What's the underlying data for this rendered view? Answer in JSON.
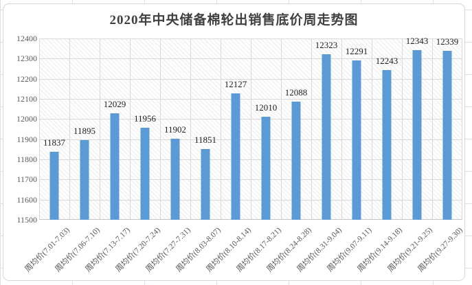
{
  "chart_data": {
    "type": "bar",
    "title": "2020年中央储备棉轮出销售底价周走势图",
    "categories": [
      "周均价(7.01-7.03)",
      "周均价(7.06-7.10)",
      "周均价(7.13-7.17)",
      "周均价(7.20-7.24)",
      "周均价(7.27-7.31)",
      "周均价(8.03-8.07)",
      "周均价(8.10-8.14)",
      "周均价(8.17-8.21)",
      "周均价(8.24-8.28)",
      "周均价(8.31-9.04)",
      "周均价(9.07-9.11)",
      "周均价(9.14-9.18)",
      "周均价(9.21-9.25)",
      "周均价(9.27-9.30)"
    ],
    "values": [
      11837,
      11895,
      12029,
      11956,
      11902,
      11851,
      12127,
      12010,
      12088,
      12323,
      12291,
      12243,
      12343,
      12339
    ],
    "xlabel": "",
    "ylabel": "",
    "ylim": [
      11500,
      12400
    ],
    "ytick_step": 100,
    "ytick_labels": [
      "11500",
      "11600",
      "11700",
      "11800",
      "11900",
      "12000",
      "12100",
      "12200",
      "12300",
      "12400"
    ],
    "grid": true,
    "gridlines": "horizontal and vertical major",
    "legend_position": "none",
    "data_labels": true
  },
  "colors": {
    "bar": "#5b9bd5",
    "gridline": "#d9d9d9",
    "axis_text": "#595959",
    "data_label_text": "#1f1f1f",
    "title_text": "#404040",
    "chart_border": "#d4d7e0",
    "sheet_gridline": "#dcdee8",
    "plot_hatch": "#ececec",
    "plot_background": "#ffffff"
  }
}
